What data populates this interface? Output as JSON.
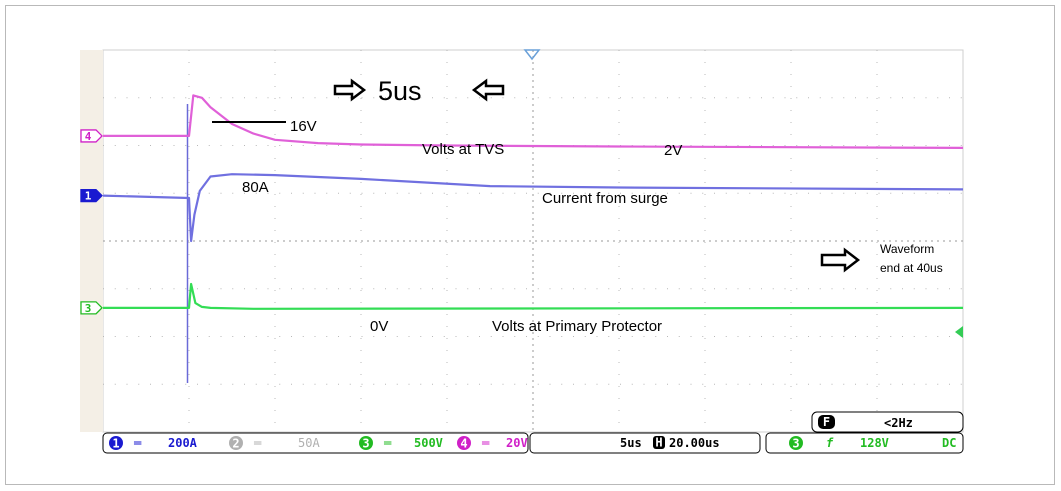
{
  "chart_data": {
    "type": "line",
    "x_unit": "us",
    "xlim": [
      -4,
      36
    ],
    "ylim": [
      -4,
      4
    ],
    "grid": true,
    "series": [
      {
        "marker": "4",
        "color": "#e060d8",
        "x": [
          -4,
          0,
          0.2,
          0.6,
          1,
          2,
          3,
          4,
          6,
          8,
          12,
          20,
          36
        ],
        "y": [
          2.2,
          2.2,
          3.05,
          3.0,
          2.8,
          2.45,
          2.25,
          2.12,
          2.05,
          2.02,
          2.0,
          1.98,
          1.95
        ]
      },
      {
        "marker": "1",
        "color": "#7070e0",
        "x": [
          -4,
          0,
          0.1,
          0.25,
          0.5,
          1,
          2,
          4,
          8,
          14,
          20,
          36
        ],
        "y": [
          0.95,
          0.9,
          0.0,
          0.55,
          1.05,
          1.35,
          1.4,
          1.38,
          1.3,
          1.15,
          1.12,
          1.08
        ]
      },
      {
        "marker": "3",
        "color": "#33dd55",
        "x": [
          -4,
          0,
          0.1,
          0.3,
          0.6,
          1,
          3,
          36
        ],
        "y": [
          -1.4,
          -1.4,
          -0.9,
          -1.3,
          -1.38,
          -1.4,
          -1.42,
          -1.4
        ]
      }
    ],
    "annotations": {
      "period": "5us",
      "peak_voltage": "16V",
      "tvs_label": "Volts at TVS",
      "tvs_level": "2V",
      "current_peak": "80A",
      "current_label": "Current from surge",
      "waveform_end": [
        "Waveform",
        "end at 40us"
      ],
      "primary_level": "0V",
      "primary_label": "Volts at Primary Protector"
    },
    "status_bar": {
      "ch1": {
        "num": "1",
        "scale": "200A",
        "color": "#1a1ad0"
      },
      "ch2": {
        "num": "2",
        "scale": "50A",
        "color": "#b0b0b0"
      },
      "ch3": {
        "num": "3",
        "scale": "500V",
        "color": "#22bb22"
      },
      "ch4": {
        "num": "4",
        "scale": "20V",
        "color": "#d020c8"
      },
      "timebase": "5us",
      "delay_icon": "H",
      "delay": "20.00us",
      "trigger_source": "3",
      "trigger_slope": "f",
      "trigger_level": "128V",
      "coupling": "DC",
      "freq_icon": "F",
      "frequency": "<2Hz"
    }
  }
}
